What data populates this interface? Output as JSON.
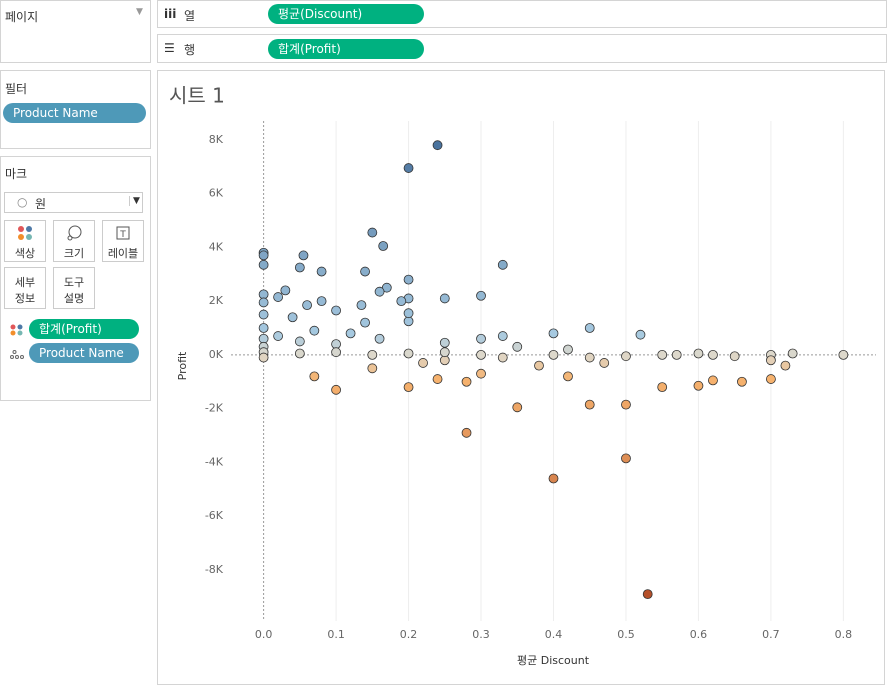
{
  "shelves": {
    "pages": "페이지",
    "columns": {
      "label": "열",
      "pill": "평균(Discount)"
    },
    "rows": {
      "label": "행",
      "pill": "합계(Profit)"
    }
  },
  "filters": {
    "title": "필터",
    "pills": [
      "Product Name"
    ]
  },
  "marks": {
    "title": "마크",
    "mark_type": "원",
    "buttons": [
      [
        "색상"
      ],
      [
        "크기"
      ],
      [
        "레이블"
      ],
      [
        "세부",
        "정보"
      ],
      [
        "도구",
        "설명"
      ]
    ],
    "pills": [
      "합계(Profit)",
      "Product Name"
    ]
  },
  "chart_data": {
    "type": "scatter",
    "title": "시트 1",
    "x_label": "평균 Discount",
    "y_label": "Profit",
    "xlim": [
      -0.045,
      0.845
    ],
    "xticks": [
      {
        "value": 0,
        "label": "0.0"
      },
      0.1,
      0.2,
      0.3,
      0.4,
      0.5,
      0.6,
      0.7,
      0.8
    ],
    "ylim": [
      -9900,
      8700
    ],
    "yticks": [
      {
        "value": -8000,
        "label": "-8K"
      },
      {
        "value": -6000,
        "label": "-6K"
      },
      {
        "value": -4000,
        "label": "-4K"
      },
      {
        "value": -2000,
        "label": "-2K"
      },
      {
        "value": 0,
        "label": "0K"
      },
      {
        "value": 2000,
        "label": "2K"
      },
      {
        "value": 4000,
        "label": "4K"
      },
      {
        "value": 6000,
        "label": "6K"
      },
      {
        "value": 8000,
        "label": "8K"
      }
    ],
    "grid": "x",
    "colors": {
      "negative": "#b5502a",
      "negative_light": "#f6b26e",
      "neutral": "#ddd8cb",
      "positive_light": "#a6c9e0",
      "positive": "#4a739e"
    },
    "x": [
      0.24,
      0.2,
      0.15,
      0.165,
      0.33,
      0,
      0,
      0,
      0.055,
      0.05,
      0.08,
      0.14,
      0.2,
      0.17,
      0.16,
      0.3,
      0.25,
      0.2,
      0.03,
      0.02,
      0,
      0,
      0.06,
      0.08,
      0.1,
      0.135,
      0.19,
      0.52,
      0.45,
      0.4,
      0.33,
      0.3,
      0.2,
      0.2,
      0.14,
      0.04,
      0,
      0,
      0,
      0,
      0,
      0.1,
      0.05,
      0.02,
      0.07,
      0.12,
      0.16,
      0.25,
      0.35,
      0.42,
      0.6,
      0.65,
      0.7,
      0.7,
      0.7,
      0.73,
      0.8,
      0.72,
      0.62,
      0.55,
      0.45,
      0.5,
      0.53,
      0.4,
      0.5,
      0.28,
      0.35,
      0.45,
      0.5,
      0.2,
      0.1,
      0.24,
      0.28,
      0.6,
      0.62,
      0.55,
      0.66,
      0.42,
      0.3,
      0.07,
      0.15,
      0.38,
      0.47,
      0.25,
      0.22,
      0.33,
      0.1,
      0.15,
      0.2,
      0.3,
      0.05,
      0.25,
      0.4,
      0,
      0.57
    ],
    "values": [
      7800,
      6950,
      4550,
      4050,
      3350,
      3800,
      3700,
      3350,
      3700,
      3250,
      3100,
      3100,
      2800,
      2500,
      2350,
      2200,
      2100,
      2100,
      2400,
      2150,
      2250,
      1950,
      1850,
      2000,
      1650,
      1850,
      2000,
      750,
      1000,
      800,
      700,
      600,
      1250,
      1550,
      1200,
      1400,
      1500,
      1000,
      600,
      300,
      100,
      400,
      500,
      700,
      900,
      800,
      600,
      450,
      300,
      200,
      50,
      -50,
      0,
      -200,
      -900,
      50,
      0,
      -400,
      0,
      0,
      -100,
      -50,
      -8900,
      -4600,
      -3850,
      -2900,
      -1950,
      -1850,
      -1850,
      -1200,
      -1300,
      -900,
      -1000,
      -1150,
      -950,
      -1200,
      -1000,
      -800,
      -700,
      -800,
      -500,
      -400,
      -300,
      -200,
      -300,
      -100,
      100,
      0,
      50,
      0,
      50,
      100,
      0,
      -100,
      0
    ]
  }
}
